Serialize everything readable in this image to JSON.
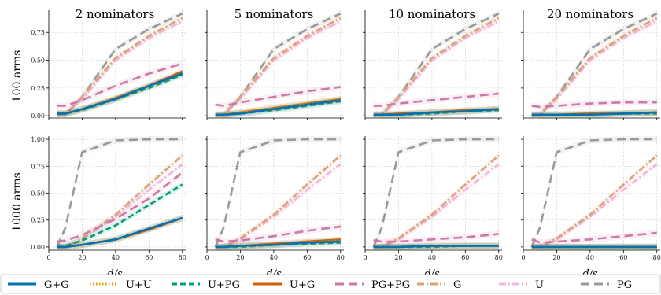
{
  "figure": {
    "column_titles": [
      "2 nominators",
      "5 nominators",
      "10 nominators",
      "20 nominators"
    ],
    "row_labels": [
      "100 arms",
      "1000 arms"
    ],
    "xlabel": "d/s"
  },
  "legend": {
    "entries": [
      {
        "name": "G+G",
        "color": "#0072b2",
        "dash": "solid"
      },
      {
        "name": "U+U",
        "color": "#e69f00",
        "dash": "dotted"
      },
      {
        "name": "U+PG",
        "color": "#009e73",
        "dash": "dashed"
      },
      {
        "name": "U+G",
        "color": "#d55e00",
        "dash": "solid"
      },
      {
        "name": "PG+PG",
        "color": "#cc79a7",
        "dash": "longdash"
      },
      {
        "name": "G",
        "color": "#d9a37a",
        "dash": "dashdot"
      },
      {
        "name": "U",
        "color": "#f7b3e0",
        "dash": "dashdot"
      },
      {
        "name": "PG",
        "color": "#999999",
        "dash": "longdash"
      }
    ]
  },
  "chart_data": [
    {
      "type": "line",
      "row_label": "100 arms",
      "title": "2 nominators",
      "xlabel": "d/s",
      "ylabel": "100 arms",
      "x": [
        5,
        10,
        20,
        40,
        60,
        80
      ],
      "xticks": [
        0,
        20,
        40,
        60,
        80
      ],
      "xlim": [
        0,
        82
      ],
      "ylim": [
        -0.02,
        0.95
      ],
      "yticks": [
        0,
        0.25,
        0.5,
        0.75
      ],
      "ytick_labels": [
        "0.00",
        "0.25",
        "0.50",
        "0.75"
      ],
      "grid": true,
      "series": [
        {
          "name": "G+G",
          "values": [
            0.02,
            0.02,
            0.06,
            0.15,
            0.27,
            0.38
          ]
        },
        {
          "name": "U+U",
          "values": [
            0.02,
            0.02,
            0.06,
            0.15,
            0.27,
            0.38
          ]
        },
        {
          "name": "U+PG",
          "values": [
            0.02,
            0.02,
            0.05,
            0.15,
            0.25,
            0.37
          ]
        },
        {
          "name": "U+G",
          "values": [
            0.02,
            0.02,
            0.06,
            0.16,
            0.27,
            0.4
          ]
        },
        {
          "name": "PG+PG",
          "values": [
            0.09,
            0.09,
            0.14,
            0.27,
            0.38,
            0.47
          ]
        },
        {
          "name": "G",
          "values": [
            0.0,
            0.01,
            0.17,
            0.52,
            0.72,
            0.88
          ]
        },
        {
          "name": "U",
          "values": [
            0.0,
            0.01,
            0.15,
            0.5,
            0.7,
            0.85
          ]
        },
        {
          "name": "PG",
          "values": [
            0.0,
            0.01,
            0.17,
            0.6,
            0.78,
            0.92
          ]
        }
      ]
    },
    {
      "type": "line",
      "row_label": "100 arms",
      "title": "5 nominators",
      "xlabel": "d/s",
      "ylabel": "100 arms",
      "x": [
        5,
        10,
        20,
        40,
        60,
        80
      ],
      "xticks": [
        0,
        20,
        40,
        60,
        80
      ],
      "xlim": [
        0,
        82
      ],
      "ylim": [
        -0.02,
        0.95
      ],
      "yticks": [
        0,
        0.25,
        0.5,
        0.75
      ],
      "ytick_labels": [
        "0.00",
        "0.25",
        "0.50",
        "0.75"
      ],
      "grid": true,
      "series": [
        {
          "name": "G+G",
          "values": [
            0.01,
            0.01,
            0.02,
            0.06,
            0.1,
            0.14
          ]
        },
        {
          "name": "U+U",
          "values": [
            0.01,
            0.01,
            0.03,
            0.07,
            0.11,
            0.15
          ]
        },
        {
          "name": "U+PG",
          "values": [
            0.01,
            0.01,
            0.02,
            0.05,
            0.09,
            0.13
          ]
        },
        {
          "name": "U+G",
          "values": [
            0.01,
            0.01,
            0.03,
            0.07,
            0.11,
            0.15
          ]
        },
        {
          "name": "PG+PG",
          "values": [
            0.1,
            0.09,
            0.12,
            0.17,
            0.22,
            0.26
          ]
        },
        {
          "name": "G",
          "values": [
            0.0,
            0.01,
            0.17,
            0.52,
            0.72,
            0.88
          ]
        },
        {
          "name": "U",
          "values": [
            0.0,
            0.01,
            0.15,
            0.5,
            0.7,
            0.85
          ]
        },
        {
          "name": "PG",
          "values": [
            0.0,
            0.01,
            0.17,
            0.6,
            0.78,
            0.92
          ]
        }
      ]
    },
    {
      "type": "line",
      "row_label": "100 arms",
      "title": "10 nominators",
      "xlabel": "d/s",
      "ylabel": "100 arms",
      "x": [
        5,
        10,
        20,
        40,
        60,
        80
      ],
      "xticks": [
        0,
        20,
        40,
        60,
        80
      ],
      "xlim": [
        0,
        82
      ],
      "ylim": [
        -0.02,
        0.95
      ],
      "yticks": [
        0,
        0.25,
        0.5,
        0.75
      ],
      "ytick_labels": [
        "0.00",
        "0.25",
        "0.50",
        "0.75"
      ],
      "grid": true,
      "series": [
        {
          "name": "G+G",
          "values": [
            0.01,
            0.01,
            0.01,
            0.03,
            0.04,
            0.06
          ]
        },
        {
          "name": "U+U",
          "values": [
            0.01,
            0.01,
            0.01,
            0.03,
            0.04,
            0.06
          ]
        },
        {
          "name": "U+PG",
          "values": [
            0.01,
            0.01,
            0.01,
            0.02,
            0.04,
            0.05
          ]
        },
        {
          "name": "U+G",
          "values": [
            0.01,
            0.01,
            0.02,
            0.03,
            0.05,
            0.06
          ]
        },
        {
          "name": "PG+PG",
          "values": [
            0.09,
            0.09,
            0.11,
            0.14,
            0.17,
            0.2
          ]
        },
        {
          "name": "G",
          "values": [
            0.0,
            0.01,
            0.17,
            0.52,
            0.72,
            0.88
          ]
        },
        {
          "name": "U",
          "values": [
            0.0,
            0.01,
            0.15,
            0.5,
            0.7,
            0.85
          ]
        },
        {
          "name": "PG",
          "values": [
            0.0,
            0.01,
            0.17,
            0.6,
            0.78,
            0.92
          ]
        }
      ]
    },
    {
      "type": "line",
      "row_label": "100 arms",
      "title": "20 nominators",
      "xlabel": "d/s",
      "ylabel": "100 arms",
      "x": [
        5,
        10,
        20,
        40,
        60,
        80
      ],
      "xticks": [
        0,
        20,
        40,
        60,
        80
      ],
      "xlim": [
        0,
        82
      ],
      "ylim": [
        -0.02,
        0.95
      ],
      "yticks": [
        0,
        0.25,
        0.5,
        0.75
      ],
      "ytick_labels": [
        "0.00",
        "0.25",
        "0.50",
        "0.75"
      ],
      "grid": true,
      "series": [
        {
          "name": "G+G",
          "values": [
            0.01,
            0.01,
            0.01,
            0.01,
            0.02,
            0.03
          ]
        },
        {
          "name": "U+U",
          "values": [
            0.01,
            0.01,
            0.01,
            0.01,
            0.02,
            0.03
          ]
        },
        {
          "name": "U+PG",
          "values": [
            0.01,
            0.01,
            0.01,
            0.01,
            0.02,
            0.02
          ]
        },
        {
          "name": "U+G",
          "values": [
            0.01,
            0.01,
            0.01,
            0.02,
            0.02,
            0.03
          ]
        },
        {
          "name": "PG+PG",
          "values": [
            0.09,
            0.08,
            0.09,
            0.11,
            0.12,
            0.12
          ]
        },
        {
          "name": "G",
          "values": [
            0.0,
            0.01,
            0.17,
            0.52,
            0.72,
            0.88
          ]
        },
        {
          "name": "U",
          "values": [
            0.0,
            0.01,
            0.15,
            0.5,
            0.7,
            0.85
          ]
        },
        {
          "name": "PG",
          "values": [
            0.0,
            0.01,
            0.17,
            0.6,
            0.78,
            0.92
          ]
        }
      ]
    },
    {
      "type": "line",
      "row_label": "1000 arms",
      "title": "",
      "xlabel": "d/s",
      "ylabel": "1000 arms",
      "x": [
        5,
        10,
        20,
        40,
        60,
        80
      ],
      "xticks": [
        0,
        20,
        40,
        60,
        80
      ],
      "xlim": [
        0,
        82
      ],
      "ylim": [
        -0.03,
        1.03
      ],
      "yticks": [
        0,
        0.25,
        0.5,
        0.75,
        1.0
      ],
      "ytick_labels": [
        "0.00",
        "0.25",
        "0.50",
        "0.75",
        "1.00"
      ],
      "grid": true,
      "series": [
        {
          "name": "G+G",
          "values": [
            0.0,
            0.0,
            0.02,
            0.07,
            0.17,
            0.27
          ]
        },
        {
          "name": "U+U",
          "values": [
            0.0,
            0.0,
            0.02,
            0.07,
            0.17,
            0.27
          ]
        },
        {
          "name": "U+PG",
          "values": [
            0.0,
            0.01,
            0.06,
            0.2,
            0.39,
            0.58
          ]
        },
        {
          "name": "U+G",
          "values": [
            0.0,
            0.0,
            0.02,
            0.07,
            0.16,
            0.27
          ]
        },
        {
          "name": "PG+PG",
          "values": [
            0.05,
            0.06,
            0.11,
            0.26,
            0.45,
            0.69
          ]
        },
        {
          "name": "G",
          "values": [
            0.0,
            0.0,
            0.08,
            0.3,
            0.58,
            0.85
          ]
        },
        {
          "name": "U",
          "values": [
            0.0,
            0.0,
            0.07,
            0.28,
            0.53,
            0.77
          ]
        },
        {
          "name": "PG",
          "values": [
            0.0,
            0.18,
            0.88,
            0.99,
            1.0,
            1.0
          ]
        }
      ]
    },
    {
      "type": "line",
      "row_label": "1000 arms",
      "title": "",
      "xlabel": "d/s",
      "ylabel": "1000 arms",
      "x": [
        5,
        10,
        20,
        40,
        60,
        80
      ],
      "xticks": [
        0,
        20,
        40,
        60,
        80
      ],
      "xlim": [
        0,
        82
      ],
      "ylim": [
        -0.03,
        1.03
      ],
      "yticks": [
        0,
        0.25,
        0.5,
        0.75,
        1.0
      ],
      "ytick_labels": [
        "0.00",
        "0.25",
        "0.50",
        "0.75",
        "1.00"
      ],
      "grid": true,
      "series": [
        {
          "name": "G+G",
          "values": [
            0.0,
            0.0,
            0.01,
            0.02,
            0.04,
            0.05
          ]
        },
        {
          "name": "U+U",
          "values": [
            0.0,
            0.0,
            0.01,
            0.02,
            0.04,
            0.06
          ]
        },
        {
          "name": "U+PG",
          "values": [
            0.0,
            0.0,
            0.0,
            0.02,
            0.03,
            0.04
          ]
        },
        {
          "name": "U+G",
          "values": [
            0.0,
            0.0,
            0.01,
            0.03,
            0.05,
            0.07
          ]
        },
        {
          "name": "PG+PG",
          "values": [
            0.07,
            0.05,
            0.06,
            0.1,
            0.15,
            0.19
          ]
        },
        {
          "name": "G",
          "values": [
            0.0,
            0.0,
            0.08,
            0.3,
            0.58,
            0.85
          ]
        },
        {
          "name": "U",
          "values": [
            0.0,
            0.0,
            0.07,
            0.28,
            0.53,
            0.77
          ]
        },
        {
          "name": "PG",
          "values": [
            0.0,
            0.18,
            0.88,
            0.99,
            1.0,
            1.0
          ]
        }
      ]
    },
    {
      "type": "line",
      "row_label": "1000 arms",
      "title": "",
      "xlabel": "d/s",
      "ylabel": "1000 arms",
      "x": [
        5,
        10,
        20,
        40,
        60,
        80
      ],
      "xticks": [
        0,
        20,
        40,
        60,
        80
      ],
      "xlim": [
        0,
        82
      ],
      "ylim": [
        -0.03,
        1.03
      ],
      "yticks": [
        0,
        0.25,
        0.5,
        0.75,
        1.0
      ],
      "ytick_labels": [
        "0.00",
        "0.25",
        "0.50",
        "0.75",
        "1.00"
      ],
      "grid": true,
      "series": [
        {
          "name": "G+G",
          "values": [
            0.0,
            0.0,
            0.0,
            0.01,
            0.01,
            0.01
          ]
        },
        {
          "name": "U+U",
          "values": [
            0.0,
            0.0,
            0.0,
            0.01,
            0.01,
            0.01
          ]
        },
        {
          "name": "U+PG",
          "values": [
            0.0,
            0.0,
            0.0,
            0.0,
            0.01,
            0.01
          ]
        },
        {
          "name": "U+G",
          "values": [
            0.0,
            0.0,
            0.0,
            0.01,
            0.01,
            0.01
          ]
        },
        {
          "name": "PG+PG",
          "values": [
            0.06,
            0.05,
            0.05,
            0.07,
            0.09,
            0.12
          ]
        },
        {
          "name": "G",
          "values": [
            0.0,
            0.0,
            0.08,
            0.3,
            0.58,
            0.85
          ]
        },
        {
          "name": "U",
          "values": [
            0.0,
            0.0,
            0.07,
            0.28,
            0.53,
            0.77
          ]
        },
        {
          "name": "PG",
          "values": [
            0.0,
            0.18,
            0.88,
            0.99,
            1.0,
            1.0
          ]
        }
      ]
    },
    {
      "type": "line",
      "row_label": "1000 arms",
      "title": "",
      "xlabel": "d/s",
      "ylabel": "1000 arms",
      "x": [
        5,
        10,
        20,
        40,
        60,
        80
      ],
      "xticks": [
        0,
        20,
        40,
        60,
        80
      ],
      "xlim": [
        0,
        82
      ],
      "ylim": [
        -0.03,
        1.03
      ],
      "yticks": [
        0,
        0.25,
        0.5,
        0.75,
        1.0
      ],
      "ytick_labels": [
        "0.00",
        "0.25",
        "0.50",
        "0.75",
        "1.00"
      ],
      "grid": true,
      "series": [
        {
          "name": "G+G",
          "values": [
            0.0,
            0.0,
            0.0,
            0.0,
            0.0,
            0.0
          ]
        },
        {
          "name": "U+U",
          "values": [
            0.0,
            0.0,
            0.0,
            0.0,
            0.0,
            0.0
          ]
        },
        {
          "name": "U+PG",
          "values": [
            0.0,
            0.0,
            0.0,
            0.0,
            0.0,
            0.0
          ]
        },
        {
          "name": "U+G",
          "values": [
            0.0,
            0.0,
            0.0,
            0.0,
            0.0,
            0.0
          ]
        },
        {
          "name": "PG+PG",
          "values": [
            0.07,
            0.04,
            0.05,
            0.07,
            0.1,
            0.13
          ]
        },
        {
          "name": "G",
          "values": [
            0.0,
            0.0,
            0.08,
            0.3,
            0.58,
            0.85
          ]
        },
        {
          "name": "U",
          "values": [
            0.0,
            0.0,
            0.07,
            0.28,
            0.53,
            0.77
          ]
        },
        {
          "name": "PG",
          "values": [
            0.0,
            0.18,
            0.88,
            0.99,
            1.0,
            1.0
          ]
        }
      ]
    }
  ]
}
